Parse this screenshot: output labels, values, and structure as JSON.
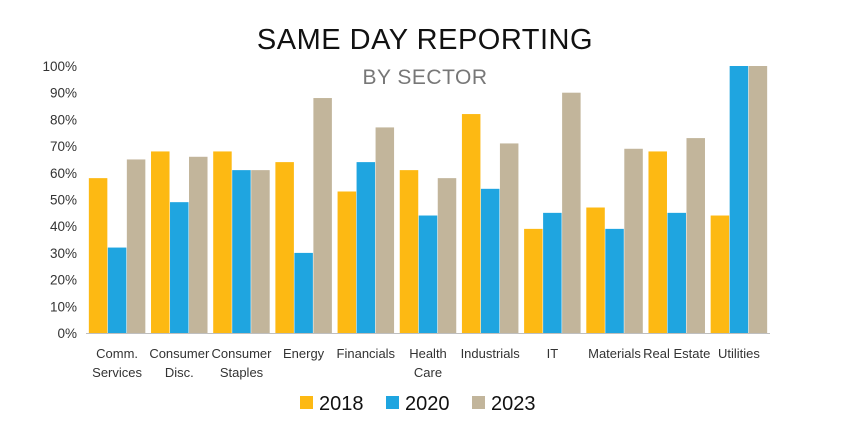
{
  "chart_data": {
    "type": "bar",
    "title": "SAME DAY REPORTING",
    "subtitle": "BY SECTOR",
    "categories": [
      [
        "Comm.",
        "Services"
      ],
      [
        "Consumer",
        "Disc."
      ],
      [
        "Consumer",
        "Staples"
      ],
      [
        "Energy"
      ],
      [
        "Financials"
      ],
      [
        "Health",
        "Care"
      ],
      [
        "Industrials"
      ],
      [
        "IT"
      ],
      [
        "Materials"
      ],
      [
        "Real Estate"
      ],
      [
        "Utilities"
      ]
    ],
    "series": [
      {
        "name": "2018",
        "color": "#FDB913",
        "values": [
          58,
          68,
          68,
          64,
          53,
          61,
          82,
          39,
          47,
          68,
          44
        ]
      },
      {
        "name": "2020",
        "color": "#1FA5E0",
        "values": [
          32,
          49,
          61,
          30,
          64,
          44,
          54,
          45,
          39,
          45,
          100
        ]
      },
      {
        "name": "2023",
        "color": "#C2B59B",
        "values": [
          65,
          66,
          61,
          88,
          77,
          58,
          71,
          90,
          69,
          73,
          100
        ]
      }
    ],
    "ylim": [
      0,
      100
    ],
    "yticks": [
      "0%",
      "10%",
      "20%",
      "30%",
      "40%",
      "50%",
      "60%",
      "70%",
      "80%",
      "90%",
      "100%"
    ],
    "legend_position": "bottom",
    "grid": false
  }
}
